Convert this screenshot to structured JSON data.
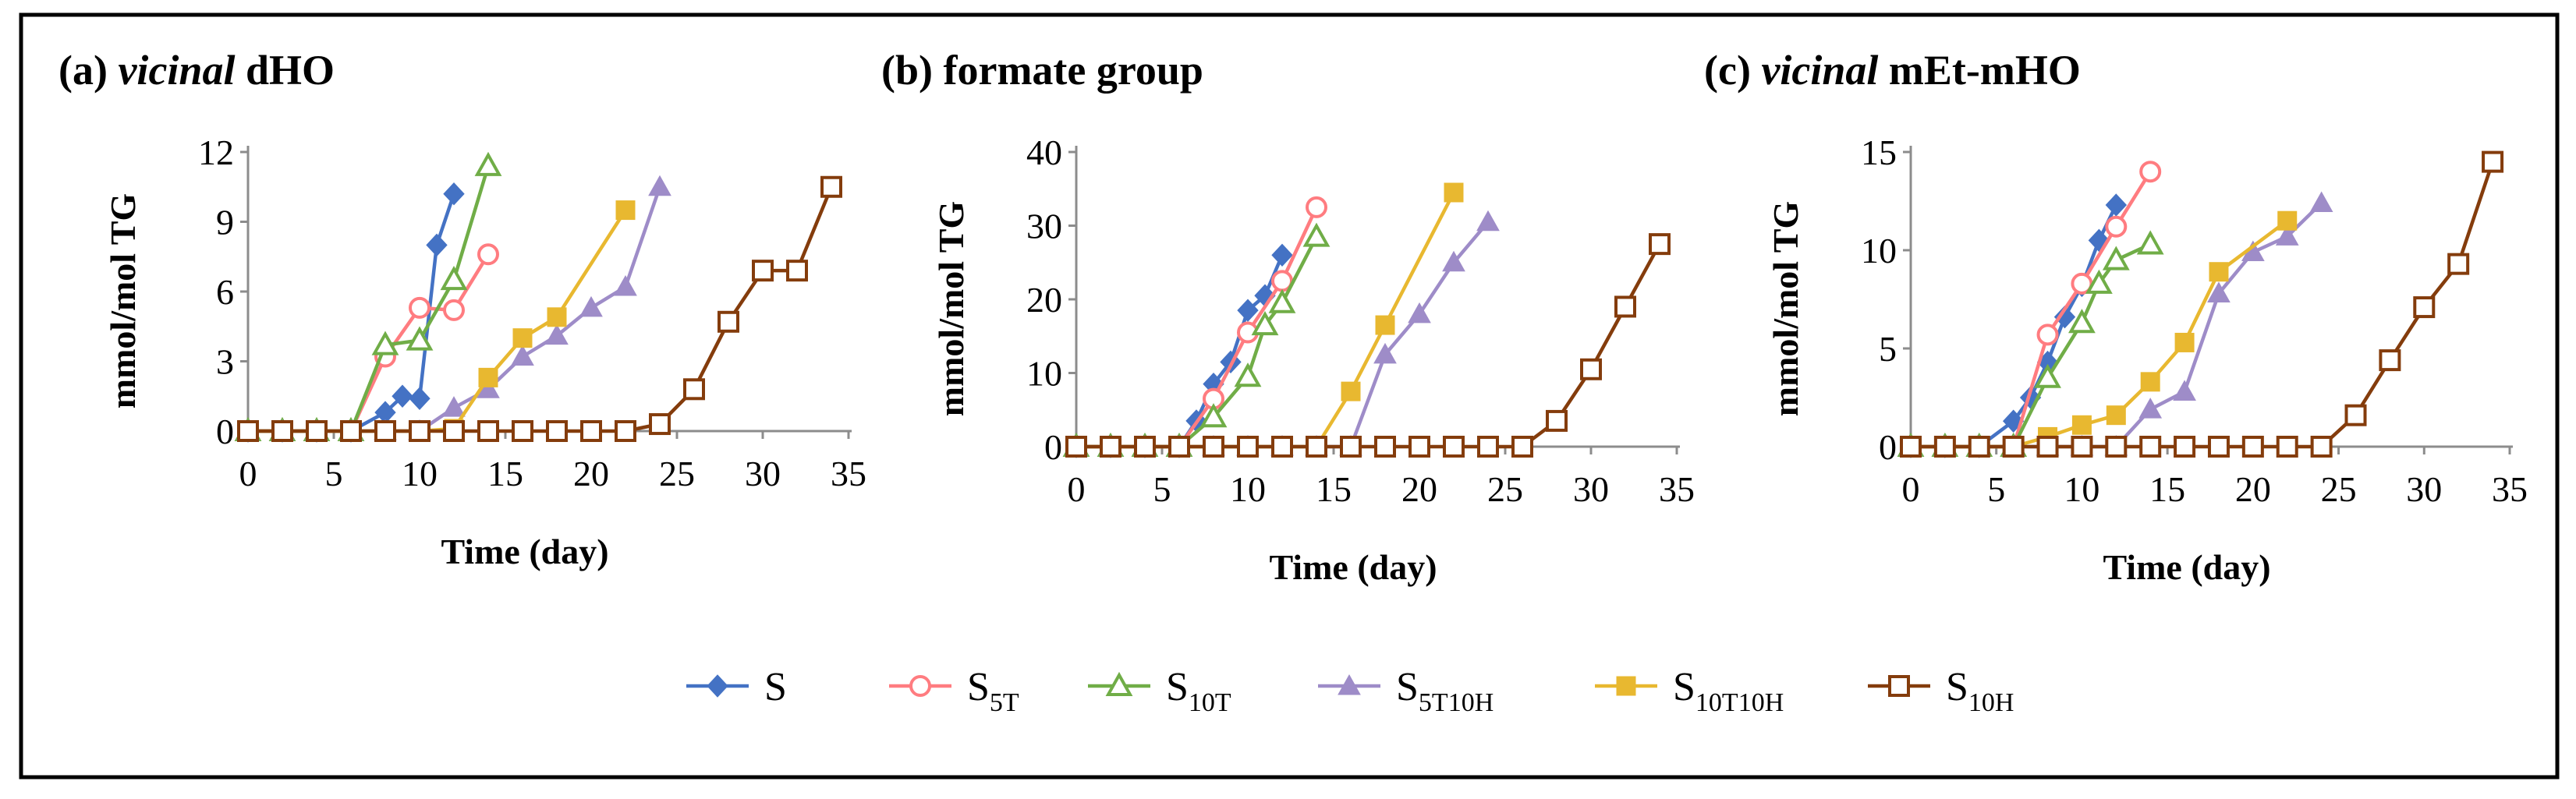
{
  "figure": {
    "legend_entries": [
      {
        "key": "S",
        "base": "S",
        "sub": ""
      },
      {
        "key": "S5T",
        "base": "S",
        "sub": "5T"
      },
      {
        "key": "S10T",
        "base": "S",
        "sub": "10T"
      },
      {
        "key": "S5T10H",
        "base": "S",
        "sub": "5T10H"
      },
      {
        "key": "S10T10H",
        "base": "S",
        "sub": "10T10H"
      },
      {
        "key": "S10H",
        "base": "S",
        "sub": "10H"
      }
    ],
    "series_styles": {
      "S": {
        "color": "#4472C4",
        "marker": "diamond-filled"
      },
      "S5T": {
        "color": "#FF7C80",
        "marker": "circle-open"
      },
      "S10T": {
        "color": "#70AD47",
        "marker": "triangle-open"
      },
      "S5T10H": {
        "color": "#9E8CC8",
        "marker": "triangle-filled"
      },
      "S10T10H": {
        "color": "#E8B830",
        "marker": "square-filled"
      },
      "S10H": {
        "color": "#843C0C",
        "marker": "square-open"
      }
    }
  },
  "chart_data": [
    {
      "type": "line",
      "title_prefix": "(a) ",
      "title_italic": "vicinal",
      "title_rest": " dHO",
      "xlabel": "Time (day)",
      "ylabel": "mmol/mol TG",
      "xlim": [
        0,
        35
      ],
      "ylim": [
        0,
        12
      ],
      "xticks": [
        0,
        5,
        10,
        15,
        20,
        25,
        30,
        35
      ],
      "yticks": [
        0,
        3,
        6,
        9,
        12
      ],
      "series": [
        {
          "name": "S",
          "x": [
            0,
            2,
            4,
            6,
            8,
            9,
            10,
            11,
            12
          ],
          "y": [
            0,
            0,
            0,
            0,
            0.8,
            1.5,
            1.4,
            8.0,
            10.2
          ]
        },
        {
          "name": "S5T",
          "x": [
            0,
            2,
            4,
            6,
            8,
            10,
            12,
            14
          ],
          "y": [
            0,
            0,
            0,
            0,
            3.2,
            5.3,
            5.2,
            7.6
          ]
        },
        {
          "name": "S10T",
          "x": [
            0,
            2,
            4,
            6,
            8,
            10,
            12,
            14
          ],
          "y": [
            0,
            0,
            0,
            0,
            3.7,
            3.9,
            6.5,
            11.4
          ]
        },
        {
          "name": "S5T10H",
          "x": [
            0,
            2,
            4,
            6,
            8,
            10,
            12,
            14,
            16,
            18,
            20,
            22,
            24
          ],
          "y": [
            0,
            0,
            0,
            0,
            0,
            0,
            1.0,
            1.8,
            3.2,
            4.1,
            5.3,
            6.2,
            10.5
          ]
        },
        {
          "name": "S10T10H",
          "x": [
            0,
            2,
            4,
            6,
            8,
            10,
            12,
            14,
            16,
            18,
            22
          ],
          "y": [
            0,
            0,
            0,
            0,
            0,
            0,
            0.1,
            2.3,
            4.0,
            4.9,
            9.5
          ]
        },
        {
          "name": "S10H",
          "x": [
            0,
            2,
            4,
            6,
            8,
            10,
            12,
            14,
            16,
            18,
            20,
            22,
            24,
            26,
            28,
            30,
            32,
            34
          ],
          "y": [
            0,
            0,
            0,
            0,
            0,
            0,
            0,
            0,
            0,
            0,
            0,
            0,
            0.3,
            1.8,
            4.7,
            6.9,
            6.9,
            10.5
          ]
        }
      ]
    },
    {
      "type": "line",
      "title_prefix": "(b) ",
      "title_italic": "",
      "title_rest": "formate group",
      "xlabel": "Time (day)",
      "ylabel": "mmol/mol TG",
      "xlim": [
        0,
        35
      ],
      "ylim": [
        0,
        40
      ],
      "xticks": [
        0,
        5,
        10,
        15,
        20,
        25,
        30,
        35
      ],
      "yticks": [
        0,
        10,
        20,
        30,
        40
      ],
      "series": [
        {
          "name": "S",
          "x": [
            0,
            2,
            4,
            6,
            7,
            8,
            9,
            10,
            11,
            12
          ],
          "y": [
            0,
            0,
            0,
            0,
            3.5,
            8.5,
            11.5,
            18.5,
            20.5,
            26
          ]
        },
        {
          "name": "S5T",
          "x": [
            0,
            2,
            4,
            6,
            8,
            10,
            12,
            14
          ],
          "y": [
            0,
            0,
            0,
            0,
            6.5,
            15.5,
            22.5,
            32.5
          ]
        },
        {
          "name": "S10T",
          "x": [
            0,
            2,
            4,
            6,
            8,
            10,
            11,
            12,
            14
          ],
          "y": [
            0,
            0,
            0,
            0,
            4.0,
            9.5,
            16.5,
            19.5,
            28.5
          ]
        },
        {
          "name": "S5T10H",
          "x": [
            0,
            2,
            4,
            6,
            8,
            10,
            12,
            14,
            16,
            18,
            20,
            22,
            24
          ],
          "y": [
            0,
            0,
            0,
            0,
            0,
            0,
            0,
            0,
            0,
            12.5,
            18,
            25,
            30.5
          ]
        },
        {
          "name": "S10T10H",
          "x": [
            0,
            2,
            4,
            6,
            8,
            10,
            12,
            14,
            16,
            18,
            22
          ],
          "y": [
            0,
            0,
            0,
            0,
            0,
            0,
            0,
            0,
            7.5,
            16.5,
            34.5
          ]
        },
        {
          "name": "S10H",
          "x": [
            0,
            2,
            4,
            6,
            8,
            10,
            12,
            14,
            16,
            18,
            20,
            22,
            24,
            26,
            28,
            30,
            32,
            34
          ],
          "y": [
            0,
            0,
            0,
            0,
            0,
            0,
            0,
            0,
            0,
            0,
            0,
            0,
            0,
            0,
            3.5,
            10.5,
            19,
            27.5
          ]
        }
      ]
    },
    {
      "type": "line",
      "title_prefix": "(c) ",
      "title_italic": "vicinal",
      "title_rest": " mEt-mHO",
      "xlabel": "Time (day)",
      "ylabel": "mmol/mol TG",
      "xlim": [
        0,
        35
      ],
      "ylim": [
        0,
        15
      ],
      "xticks": [
        0,
        5,
        10,
        15,
        20,
        25,
        30,
        35
      ],
      "yticks": [
        0,
        5,
        10,
        15
      ],
      "series": [
        {
          "name": "S",
          "x": [
            0,
            2,
            4,
            6,
            7,
            8,
            9,
            10,
            11,
            12
          ],
          "y": [
            0,
            0,
            0,
            1.3,
            2.5,
            4.3,
            6.6,
            8.2,
            10.5,
            12.3
          ]
        },
        {
          "name": "S5T",
          "x": [
            0,
            2,
            4,
            6,
            8,
            10,
            12,
            14
          ],
          "y": [
            0,
            0,
            0,
            0,
            5.7,
            8.3,
            11.2,
            14
          ]
        },
        {
          "name": "S10T",
          "x": [
            0,
            2,
            4,
            6,
            8,
            10,
            11,
            12,
            14
          ],
          "y": [
            0,
            0,
            0,
            0,
            3.5,
            6.3,
            8.3,
            9.5,
            10.3
          ]
        },
        {
          "name": "S5T10H",
          "x": [
            0,
            2,
            4,
            6,
            8,
            10,
            12,
            14,
            16,
            18,
            20,
            22,
            24
          ],
          "y": [
            0,
            0,
            0,
            0,
            0,
            0,
            0,
            1.9,
            2.8,
            7.8,
            9.9,
            10.7,
            12.4
          ]
        },
        {
          "name": "S10T10H",
          "x": [
            0,
            2,
            4,
            6,
            8,
            10,
            12,
            14,
            16,
            18,
            22
          ],
          "y": [
            0,
            0,
            0,
            0,
            0.5,
            1.1,
            1.6,
            3.3,
            5.3,
            8.9,
            11.5
          ]
        },
        {
          "name": "S10H",
          "x": [
            0,
            2,
            4,
            6,
            8,
            10,
            12,
            14,
            16,
            18,
            20,
            22,
            24,
            26,
            28,
            30,
            32,
            34
          ],
          "y": [
            0,
            0,
            0,
            0,
            0,
            0,
            0,
            0,
            0,
            0,
            0,
            0,
            0,
            1.6,
            4.4,
            7.1,
            9.3,
            14.5
          ]
        }
      ]
    }
  ]
}
